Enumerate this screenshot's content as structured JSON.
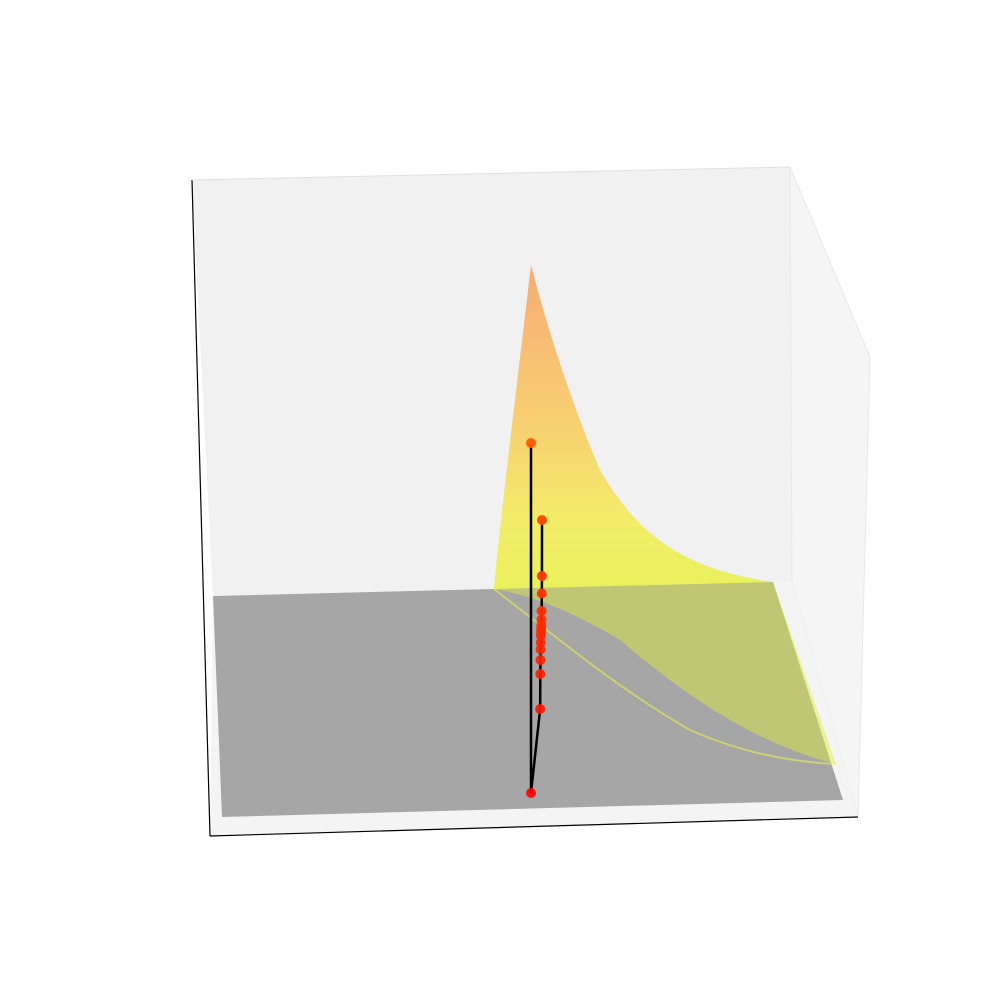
{
  "chart_data": {
    "type": "surface3d",
    "title": "",
    "xlabel": "",
    "ylabel": "",
    "zlabel": "",
    "grid": false,
    "axis_ticks": false,
    "surfaces": [
      {
        "kind": "function-surface",
        "colormap": "yellow-to-orange",
        "opacity": 0.6
      },
      {
        "kind": "floor-plane",
        "color": "#9a9a9a"
      }
    ],
    "trajectory": {
      "line_color": "#000000",
      "marker_colormap": [
        "#ff0000",
        "#ff5a00"
      ],
      "points_z": [
        0.0,
        0.24,
        0.34,
        0.38,
        0.41,
        0.43,
        0.45,
        0.46,
        0.47,
        0.48,
        0.495,
        0.52,
        0.57,
        0.62,
        0.78,
        1.0
      ]
    }
  }
}
